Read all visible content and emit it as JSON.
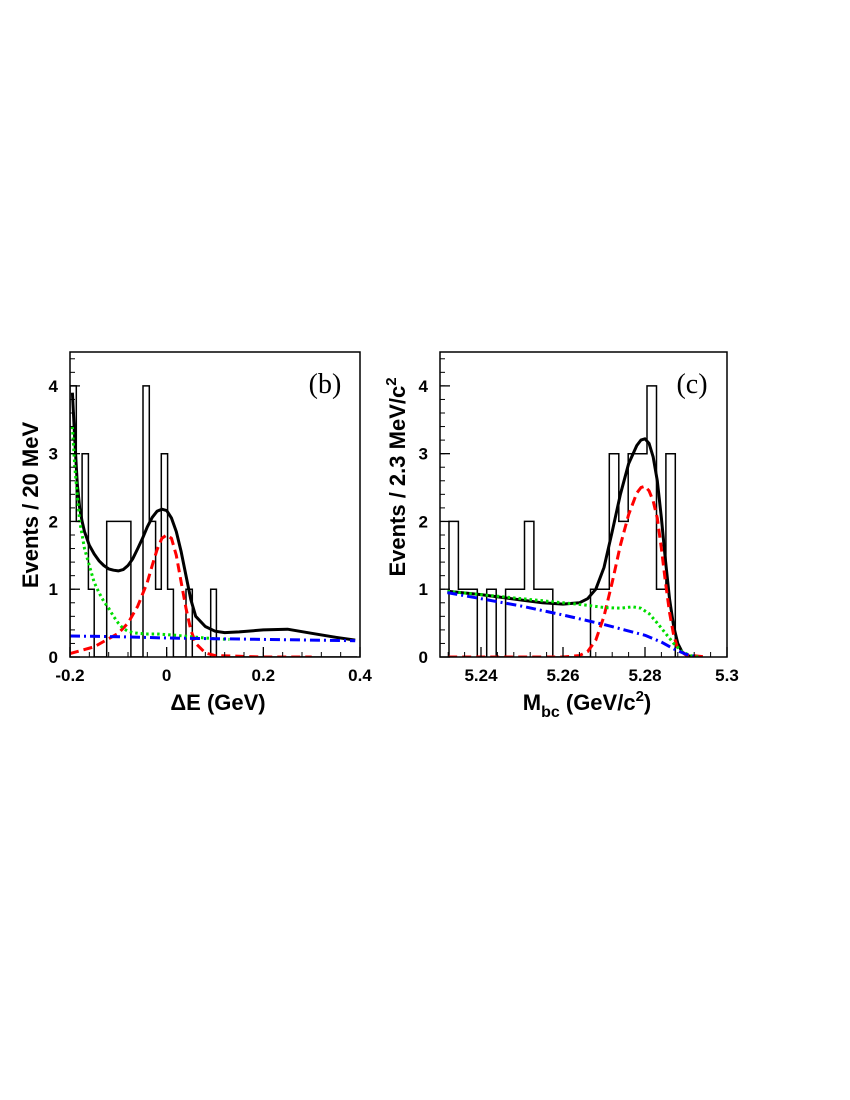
{
  "chart_data": [
    {
      "type": "histogram",
      "panel_label": "(b)",
      "xlabel": "ΔE (GeV)",
      "ylabel": "Events / 20 MeV",
      "xlim": [
        -0.2,
        0.4
      ],
      "ylim": [
        0,
        4.5
      ],
      "xticks": [
        -0.2,
        0,
        0.2,
        0.4
      ],
      "xtick_labels": [
        "-0.2",
        "0",
        "0.2",
        "0.4"
      ],
      "yticks": [
        0,
        1,
        2,
        3,
        4
      ],
      "ytick_labels": [
        "0",
        "1",
        "2",
        "3",
        "4"
      ],
      "histogram": {
        "bin_edges": [
          -0.2,
          -0.187,
          -0.175,
          -0.162,
          -0.15,
          -0.137,
          -0.124,
          -0.112,
          -0.099,
          -0.087,
          -0.074,
          -0.061,
          -0.049,
          -0.036,
          -0.023,
          -0.011,
          0.002,
          0.014,
          0.027,
          0.04,
          0.053,
          0.065,
          0.078,
          0.091,
          0.103,
          0.116,
          0.128,
          0.141,
          0.154,
          0.166,
          0.179,
          0.192,
          0.204,
          0.217,
          0.23,
          0.242,
          0.255,
          0.268,
          0.28,
          0.293,
          0.305,
          0.318,
          0.331,
          0.343,
          0.356,
          0.369,
          0.381,
          0.394
        ],
        "counts": [
          4,
          2,
          3,
          1,
          0,
          0,
          2,
          2,
          2,
          2,
          0,
          0,
          4,
          2,
          1,
          3,
          1,
          0,
          0,
          1,
          0,
          0,
          0,
          1,
          0,
          0,
          0,
          0,
          0,
          0,
          0,
          0,
          0,
          0,
          0,
          0,
          0,
          0,
          0,
          0,
          0,
          0,
          0,
          0,
          0,
          0,
          0
        ],
        "color": "#000000"
      },
      "curves": [
        {
          "style": "solid",
          "color": "#000000",
          "x": [
            -0.195,
            -0.19,
            -0.185,
            -0.18,
            -0.175,
            -0.17,
            -0.16,
            -0.15,
            -0.14,
            -0.13,
            -0.12,
            -0.11,
            -0.1,
            -0.09,
            -0.08,
            -0.07,
            -0.06,
            -0.05,
            -0.04,
            -0.03,
            -0.02,
            -0.01,
            0,
            0.01,
            0.02,
            0.03,
            0.04,
            0.05,
            0.06,
            0.08,
            0.1,
            0.12,
            0.15,
            0.2,
            0.25,
            0.3,
            0.35,
            0.39
          ],
          "y": [
            3.9,
            3.2,
            2.55,
            2.2,
            2.0,
            1.85,
            1.65,
            1.52,
            1.42,
            1.35,
            1.3,
            1.28,
            1.27,
            1.29,
            1.35,
            1.45,
            1.6,
            1.75,
            1.92,
            2.06,
            2.15,
            2.18,
            2.16,
            2.05,
            1.85,
            1.55,
            1.2,
            0.85,
            0.6,
            0.45,
            0.38,
            0.36,
            0.37,
            0.4,
            0.41,
            0.35,
            0.29,
            0.25
          ]
        },
        {
          "style": "dashed",
          "color": "#ff0000",
          "x": [
            -0.2,
            -0.15,
            -0.1,
            -0.08,
            -0.06,
            -0.04,
            -0.03,
            -0.02,
            -0.01,
            0,
            0.01,
            0.02,
            0.03,
            0.04,
            0.05,
            0.06,
            0.08,
            0.1,
            0.15,
            0.2,
            0.25,
            0.3
          ],
          "y": [
            0.05,
            0.15,
            0.35,
            0.5,
            0.75,
            1.1,
            1.35,
            1.58,
            1.75,
            1.8,
            1.75,
            1.5,
            1.1,
            0.72,
            0.4,
            0.2,
            0.06,
            0.02,
            0.01,
            0.0,
            0.0,
            0.0
          ]
        },
        {
          "style": "dotted",
          "color": "#00dd00",
          "x": [
            -0.195,
            -0.19,
            -0.18,
            -0.17,
            -0.16,
            -0.15,
            -0.14,
            -0.13,
            -0.12,
            -0.11,
            -0.1,
            -0.09,
            -0.08,
            -0.07,
            -0.06,
            -0.04,
            -0.02,
            0,
            0.02,
            0.05,
            0.08,
            0.1,
            0.13
          ],
          "y": [
            3.4,
            2.8,
            2.0,
            1.6,
            1.35,
            1.1,
            0.95,
            0.82,
            0.72,
            0.6,
            0.5,
            0.42,
            0.38,
            0.36,
            0.35,
            0.34,
            0.34,
            0.33,
            0.32,
            0.3,
            0.28,
            0.27,
            0.26
          ]
        },
        {
          "style": "dashdot",
          "color": "#0000ff",
          "x": [
            -0.2,
            -0.1,
            0,
            0.1,
            0.2,
            0.3,
            0.39
          ],
          "y": [
            0.31,
            0.3,
            0.28,
            0.27,
            0.26,
            0.25,
            0.24
          ]
        }
      ]
    },
    {
      "type": "histogram",
      "panel_label": "(c)",
      "xlabel": "M_bc (GeV/c²)",
      "xlabel_main": "M",
      "xlabel_sub": "bc",
      "xlabel_rest": " (GeV/c",
      "xlabel_sup": "2",
      "xlabel_close": ")",
      "ylabel": "Events / 2.3 MeV/c²",
      "ylabel_main": "Events / 2.3 MeV/c",
      "ylabel_sup": "2",
      "xlim": [
        5.23,
        5.3
      ],
      "ylim": [
        0,
        4.5
      ],
      "xticks": [
        5.24,
        5.26,
        5.28,
        5.3
      ],
      "xtick_labels": [
        "5.24",
        "5.26",
        "5.28",
        "5.3"
      ],
      "yticks": [
        0,
        1,
        2,
        3,
        4
      ],
      "ytick_labels": [
        "0",
        "1",
        "2",
        "3",
        "4"
      ],
      "histogram": {
        "bin_edges": [
          5.2322,
          5.2345,
          5.2368,
          5.2391,
          5.2414,
          5.2437,
          5.246,
          5.2483,
          5.2506,
          5.2529,
          5.2552,
          5.2575,
          5.2598,
          5.2621,
          5.2644,
          5.2667,
          5.269,
          5.2713,
          5.2736,
          5.2759,
          5.2782,
          5.2805,
          5.2828,
          5.2851,
          5.2874
        ],
        "counts": [
          2,
          1,
          1,
          0,
          1,
          0,
          1,
          1,
          2,
          1,
          1,
          0,
          0,
          0,
          0,
          1,
          1,
          3,
          2,
          3,
          3,
          4,
          1,
          3
        ],
        "color": "#000000"
      },
      "curves": [
        {
          "style": "solid",
          "color": "#000000",
          "x": [
            5.2318,
            5.24,
            5.25,
            5.255,
            5.26,
            5.264,
            5.266,
            5.268,
            5.27,
            5.272,
            5.274,
            5.276,
            5.278,
            5.279,
            5.28,
            5.281,
            5.282,
            5.283,
            5.284,
            5.285,
            5.286,
            5.287,
            5.288,
            5.289,
            5.29,
            5.291,
            5.292,
            5.293
          ],
          "y": [
            0.97,
            0.92,
            0.84,
            0.8,
            0.78,
            0.8,
            0.86,
            1.0,
            1.32,
            1.85,
            2.4,
            2.85,
            3.12,
            3.2,
            3.22,
            3.15,
            2.95,
            2.6,
            2.05,
            1.42,
            0.85,
            0.45,
            0.2,
            0.08,
            0.03,
            0.01,
            0.0,
            0.0
          ]
        },
        {
          "style": "dashed",
          "color": "#ff0000",
          "x": [
            5.232,
            5.26,
            5.264,
            5.266,
            5.268,
            5.27,
            5.272,
            5.274,
            5.276,
            5.278,
            5.279,
            5.28,
            5.281,
            5.282,
            5.283,
            5.284,
            5.285,
            5.286,
            5.287,
            5.288,
            5.29,
            5.295
          ],
          "y": [
            0.0,
            0.0,
            0.02,
            0.08,
            0.25,
            0.6,
            1.1,
            1.65,
            2.1,
            2.42,
            2.5,
            2.52,
            2.45,
            2.3,
            2.05,
            1.6,
            1.1,
            0.65,
            0.32,
            0.12,
            0.03,
            0.0
          ]
        },
        {
          "style": "dotted",
          "color": "#00dd00",
          "x": [
            5.2318,
            5.24,
            5.25,
            5.26,
            5.265,
            5.27,
            5.274,
            5.277,
            5.279,
            5.281,
            5.283,
            5.285,
            5.287,
            5.289,
            5.291,
            5.293
          ],
          "y": [
            0.97,
            0.92,
            0.86,
            0.8,
            0.77,
            0.73,
            0.72,
            0.74,
            0.72,
            0.64,
            0.5,
            0.35,
            0.2,
            0.08,
            0.02,
            0.0
          ]
        },
        {
          "style": "dashdot",
          "color": "#0000ff",
          "x": [
            5.2318,
            5.24,
            5.25,
            5.26,
            5.27,
            5.275,
            5.28,
            5.284,
            5.287,
            5.29,
            5.293
          ],
          "y": [
            0.95,
            0.86,
            0.75,
            0.62,
            0.48,
            0.4,
            0.32,
            0.22,
            0.12,
            0.04,
            0.0
          ]
        }
      ]
    }
  ]
}
